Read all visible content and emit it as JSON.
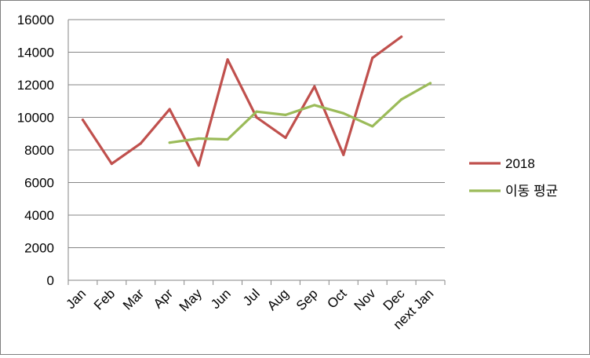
{
  "chart_data": {
    "type": "line",
    "categories": [
      "Jan",
      "Feb",
      "Mar",
      "Apr",
      "May",
      "Jun",
      "Jul",
      "Aug",
      "Sep",
      "Oct",
      "Nov",
      "Dec",
      "next Jan"
    ],
    "ylim": [
      0,
      16000
    ],
    "yticks": [
      "0",
      "2000",
      "4000",
      "6000",
      "8000",
      "10000",
      "12000",
      "14000",
      "16000"
    ],
    "grid": true,
    "legend_position": "right",
    "series": [
      {
        "name": "2018",
        "color": "#c0504d",
        "values": [
          9850,
          7150,
          8400,
          10500,
          7050,
          13550,
          10000,
          8750,
          11900,
          7700,
          13650,
          14950,
          null
        ]
      },
      {
        "name": "이동 평균",
        "color": "#9bbb59",
        "values": [
          null,
          null,
          null,
          8450,
          8700,
          8650,
          10350,
          10150,
          10750,
          10250,
          9450,
          11100,
          12100
        ]
      }
    ]
  }
}
